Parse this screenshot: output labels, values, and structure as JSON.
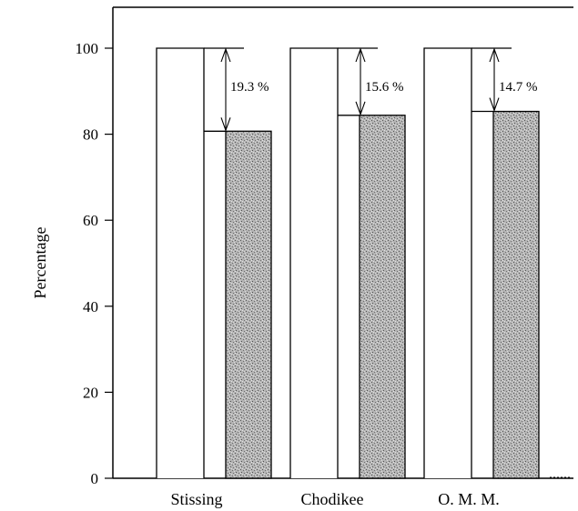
{
  "chart_data": {
    "type": "bar",
    "title": "",
    "xlabel": "",
    "ylabel": "Percentage",
    "ylim": [
      0,
      110
    ],
    "yticks": [
      0,
      20,
      40,
      60,
      80,
      100
    ],
    "categories": [
      "Stissing",
      "Chodikee",
      "O. M. M."
    ],
    "series": [
      {
        "values": [
          100,
          100,
          100
        ]
      },
      {
        "values": [
          80.7,
          84.4,
          85.3
        ]
      }
    ],
    "annotations": [
      "19.3 %",
      "15.6 %",
      "14.7 %"
    ],
    "grid": false,
    "legend": "none",
    "colors": {
      "reference_bar": "#ffffff",
      "measured_bar": "#a8a8a8",
      "axis": "#000000"
    }
  }
}
